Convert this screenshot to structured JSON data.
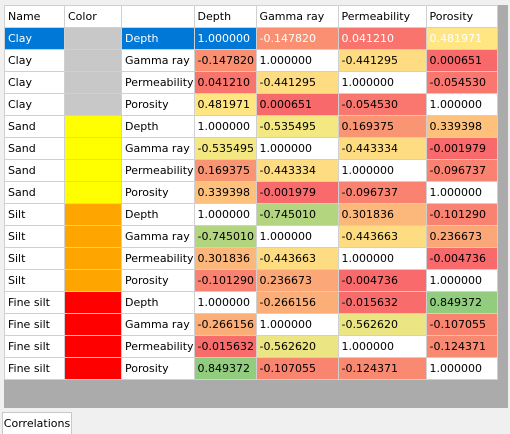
{
  "table": {
    "columns": [
      "Name",
      "Color",
      "",
      "Depth",
      "Gamma ray",
      "Permeability",
      "Porosity"
    ],
    "selected_row": 0,
    "rows": [
      {
        "name": "Clay",
        "color": "#c8c8c8",
        "property": "Depth",
        "values": [
          "1.000000",
          "-0.147820",
          "0.041210",
          "0.481971"
        ]
      },
      {
        "name": "Clay",
        "color": "#c8c8c8",
        "property": "Gamma ray",
        "values": [
          "-0.147820",
          "1.000000",
          "-0.441295",
          "0.000651"
        ]
      },
      {
        "name": "Clay",
        "color": "#c8c8c8",
        "property": "Permeability",
        "values": [
          "0.041210",
          "-0.441295",
          "1.000000",
          "-0.054530"
        ]
      },
      {
        "name": "Clay",
        "color": "#c8c8c8",
        "property": "Porosity",
        "values": [
          "0.481971",
          "0.000651",
          "-0.054530",
          "1.000000"
        ]
      },
      {
        "name": "Sand",
        "color": "#ffff00",
        "property": "Depth",
        "values": [
          "1.000000",
          "-0.535495",
          "0.169375",
          "0.339398"
        ]
      },
      {
        "name": "Sand",
        "color": "#ffff00",
        "property": "Gamma ray",
        "values": [
          "-0.535495",
          "1.000000",
          "-0.443334",
          "-0.001979"
        ]
      },
      {
        "name": "Sand",
        "color": "#ffff00",
        "property": "Permeability",
        "values": [
          "0.169375",
          "-0.443334",
          "1.000000",
          "-0.096737"
        ]
      },
      {
        "name": "Sand",
        "color": "#ffff00",
        "property": "Porosity",
        "values": [
          "0.339398",
          "-0.001979",
          "-0.096737",
          "1.000000"
        ]
      },
      {
        "name": "Silt",
        "color": "#ffa500",
        "property": "Depth",
        "values": [
          "1.000000",
          "-0.745010",
          "0.301836",
          "-0.101290"
        ]
      },
      {
        "name": "Silt",
        "color": "#ffa500",
        "property": "Gamma ray",
        "values": [
          "-0.745010",
          "1.000000",
          "-0.443663",
          "0.236673"
        ]
      },
      {
        "name": "Silt",
        "color": "#ffa500",
        "property": "Permeability",
        "values": [
          "0.301836",
          "-0.443663",
          "1.000000",
          "-0.004736"
        ]
      },
      {
        "name": "Silt",
        "color": "#ffa500",
        "property": "Porosity",
        "values": [
          "-0.101290",
          "0.236673",
          "-0.004736",
          "1.000000"
        ]
      },
      {
        "name": "Fine silt",
        "color": "#ff0000",
        "property": "Depth",
        "values": [
          "1.000000",
          "-0.266156",
          "-0.015632",
          "0.849372"
        ]
      },
      {
        "name": "Fine silt",
        "color": "#ff0000",
        "property": "Gamma ray",
        "values": [
          "-0.266156",
          "1.000000",
          "-0.562620",
          "-0.107055"
        ]
      },
      {
        "name": "Fine silt",
        "color": "#ff0000",
        "property": "Permeability",
        "values": [
          "-0.015632",
          "-0.562620",
          "1.000000",
          "-0.124371"
        ]
      },
      {
        "name": "Fine silt",
        "color": "#ff0000",
        "property": "Porosity",
        "values": [
          "0.849372",
          "-0.107055",
          "-0.124371",
          "1.000000"
        ]
      }
    ]
  },
  "tab": "Correlations"
}
